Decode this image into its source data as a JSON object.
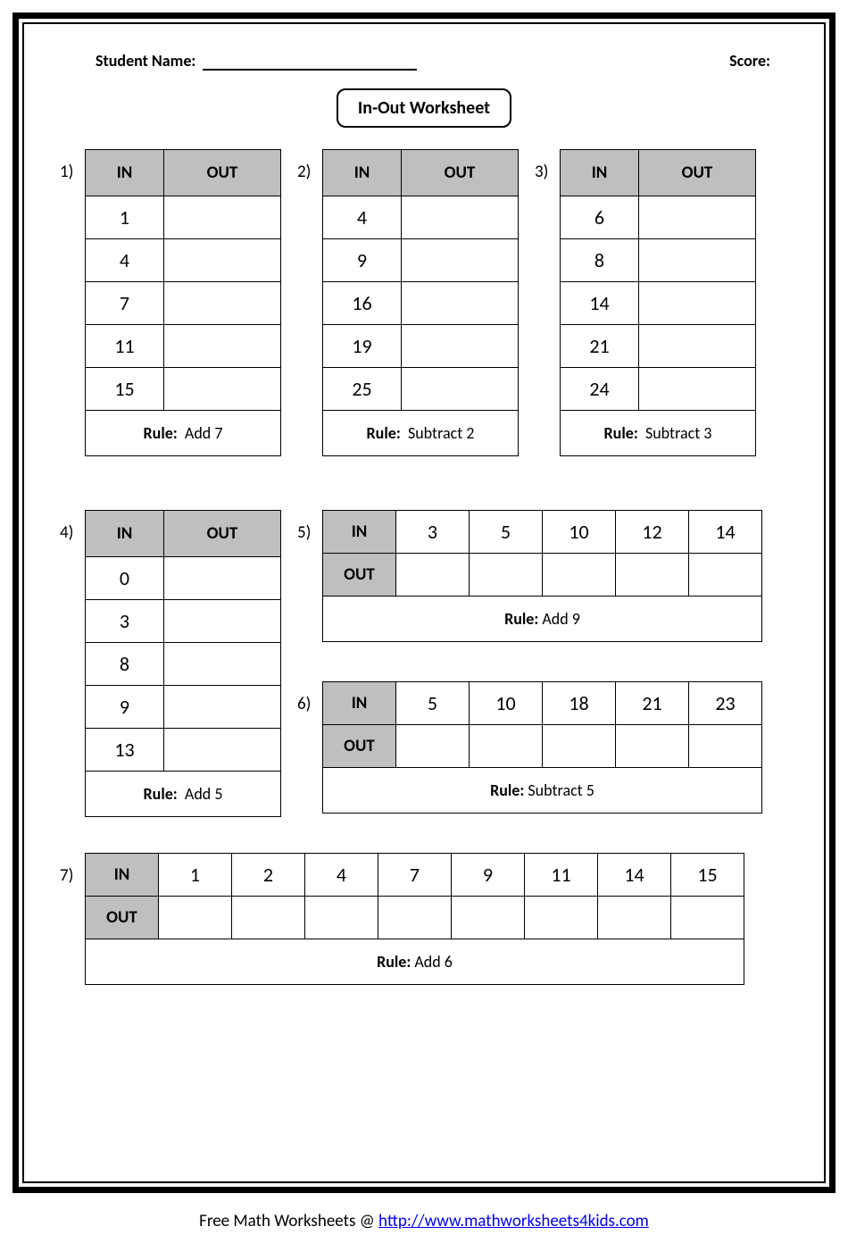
{
  "header": {
    "student_label": "Student Name:",
    "score_label": "Score:"
  },
  "title": "In-Out Worksheet",
  "labels": {
    "in": "IN",
    "out": "OUT",
    "rule": "Rule:"
  },
  "problems": {
    "p1": {
      "num": "1)",
      "values": [
        "1",
        "4",
        "7",
        "11",
        "15"
      ],
      "rule": "Add 7"
    },
    "p2": {
      "num": "2)",
      "values": [
        "4",
        "9",
        "16",
        "19",
        "25"
      ],
      "rule": "Subtract 2"
    },
    "p3": {
      "num": "3)",
      "values": [
        "6",
        "8",
        "14",
        "21",
        "24"
      ],
      "rule": "Subtract 3"
    },
    "p4": {
      "num": "4)",
      "values": [
        "0",
        "3",
        "8",
        "9",
        "13"
      ],
      "rule": "Add 5"
    },
    "p5": {
      "num": "5)",
      "values": [
        "3",
        "5",
        "10",
        "12",
        "14"
      ],
      "rule": "Add 9"
    },
    "p6": {
      "num": "6)",
      "values": [
        "5",
        "10",
        "18",
        "21",
        "23"
      ],
      "rule": "Subtract 5"
    },
    "p7": {
      "num": "7)",
      "values": [
        "1",
        "2",
        "4",
        "7",
        "9",
        "11",
        "14",
        "15"
      ],
      "rule": "Add 6"
    }
  },
  "footer": {
    "text": "Free Math Worksheets @ ",
    "link_text": "http://www.mathworksheets4kids.com"
  },
  "style": {
    "header_bg": "#bfbfbf",
    "border_color": "#000000",
    "page_bg": "#ffffff",
    "value_fontsize": 22,
    "label_fontsize": 19,
    "rule_fontsize": 18
  }
}
